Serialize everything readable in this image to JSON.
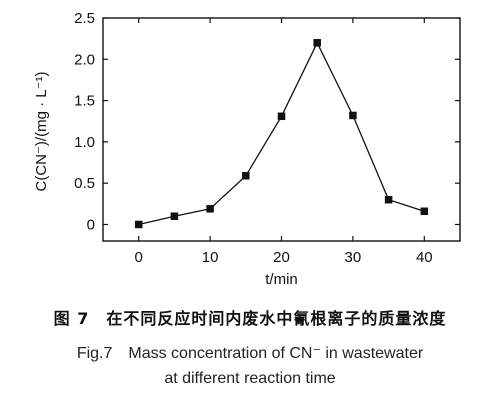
{
  "chart_data": {
    "type": "line",
    "x": [
      0,
      5,
      10,
      15,
      20,
      25,
      30,
      35,
      40
    ],
    "series": [
      {
        "values": [
          0.0,
          0.1,
          0.19,
          0.59,
          1.31,
          2.2,
          1.32,
          0.3,
          0.16
        ]
      }
    ],
    "xlabel": "t/min",
    "ylabel": "C(CN⁻)/(mg · L⁻¹)",
    "xlim": [
      -5,
      45
    ],
    "ylim": [
      -0.2,
      2.5
    ],
    "xticks": [
      0,
      10,
      20,
      30,
      40
    ],
    "yticks": [
      0,
      0.5,
      1.0,
      1.5,
      2.0,
      2.5
    ],
    "xtick_labels": [
      "0",
      "10",
      "20",
      "30",
      "40"
    ],
    "ytick_labels": [
      "0",
      "0.5",
      "1.0",
      "1.5",
      "2.0",
      "2.5"
    ],
    "marker": "square",
    "grid": false,
    "line_color": "#111111"
  },
  "caption": {
    "cn": "图 7　在不同反应时间内废水中氰根离子的质量浓度",
    "en_line1": "Fig.7　Mass concentration of CN⁻ in wastewater",
    "en_line2": "at different reaction time"
  }
}
